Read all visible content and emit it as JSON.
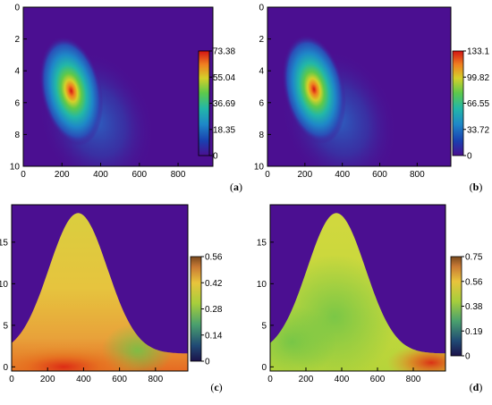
{
  "chart_data": [
    {
      "type": "heatmap",
      "panel": "(a)",
      "panel_letter": "a",
      "xlim": [
        0,
        980
      ],
      "ylim": [
        0,
        10
      ],
      "y_inverted": true,
      "xticks": [
        0,
        200,
        400,
        600,
        800
      ],
      "yticks": [
        0,
        2,
        4,
        6,
        8,
        10
      ],
      "colorbar": {
        "ticks": [
          "73.38",
          "55.04",
          "36.69",
          "18.35",
          "0"
        ],
        "min": 0,
        "max": 73.38,
        "colormap": "rainbow"
      },
      "background_color": "#4b0f91",
      "hotspot": {
        "x": 220,
        "y": 4.7,
        "peak": 73.38
      }
    },
    {
      "type": "heatmap",
      "panel": "(b)",
      "panel_letter": "b",
      "xlim": [
        0,
        980
      ],
      "ylim": [
        0,
        10
      ],
      "y_inverted": true,
      "xticks": [
        0,
        200,
        400,
        600,
        800
      ],
      "yticks": [
        0,
        2,
        4,
        6,
        8,
        10
      ],
      "colorbar": {
        "ticks": [
          "133.1",
          "99.82",
          "66.55",
          "33.72",
          "0"
        ],
        "min": 0,
        "max": 133.1,
        "colormap": "rainbow"
      },
      "background_color": "#4b0f91",
      "hotspot": {
        "x": 220,
        "y": 4.6,
        "peak": 133.1
      }
    },
    {
      "type": "heatmap",
      "panel": "(c)",
      "panel_letter": "c",
      "xlim": [
        0,
        980
      ],
      "ylim": [
        -0.5,
        19.5
      ],
      "xticks": [
        0,
        200,
        400,
        600,
        800
      ],
      "yticks": [
        0,
        5,
        10,
        15
      ],
      "colorbar": {
        "ticks": [
          "0.56",
          "0.42",
          "0.28",
          "0.14",
          "0"
        ],
        "min": 0,
        "max": 0.56,
        "colormap": "terrain"
      },
      "background_color": "#4b0f91",
      "envelope": {
        "peak_x": 370,
        "peak_y": 18.5,
        "width": 230,
        "base": 1.6
      },
      "hotspot": {
        "x": 290,
        "y": 0.0,
        "peak": 0.56
      }
    },
    {
      "type": "heatmap",
      "panel": "(d)",
      "panel_letter": "d",
      "xlim": [
        0,
        980
      ],
      "ylim": [
        -0.5,
        19.5
      ],
      "xticks": [
        0,
        200,
        400,
        600,
        800
      ],
      "yticks": [
        0,
        5,
        10,
        15
      ],
      "colorbar": {
        "ticks": [
          "0.75",
          "0.56",
          "0.38",
          "0.19",
          "0"
        ],
        "min": 0,
        "max": 0.75,
        "colormap": "terrain"
      },
      "background_color": "#4b0f91",
      "envelope": {
        "peak_x": 370,
        "peak_y": 18.5,
        "width": 230,
        "base": 1.6
      },
      "hotspot": {
        "x": 900,
        "y": 0.5,
        "peak": 0.75
      }
    }
  ]
}
